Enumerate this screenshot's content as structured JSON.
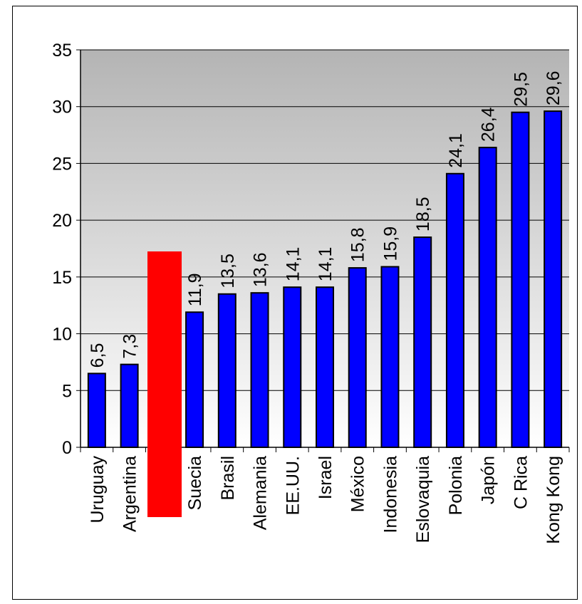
{
  "chart_data": {
    "type": "bar",
    "title": "",
    "xlabel": "",
    "ylabel": "",
    "categories": [
      "Uruguay",
      "Argentina",
      "",
      "Suecia",
      "Brasil",
      "Alemania",
      "EE.UU.",
      "Israel",
      "México",
      "Indonesia",
      "Eslovaquia",
      "Polonia",
      "Japón",
      "C Rica",
      "Kong Kong"
    ],
    "values": [
      6.5,
      7.3,
      null,
      11.9,
      13.5,
      13.6,
      14.1,
      14.1,
      15.8,
      15.9,
      18.5,
      24.1,
      26.4,
      29.5,
      29.6
    ],
    "data_labels": [
      "6,5",
      "7,3",
      "",
      "11,9",
      "13,5",
      "13,6",
      "14,1",
      "14,1",
      "15,8",
      "15,9",
      "18,5",
      "24,1",
      "26,4",
      "29,5",
      "29,6"
    ],
    "yticks": [
      0,
      5,
      10,
      15,
      20,
      25,
      30,
      35
    ],
    "ytick_labels": [
      "0",
      "5",
      "10",
      "15",
      "20",
      "25",
      "30",
      "35"
    ],
    "ylim": [
      0,
      35
    ],
    "grid": true,
    "legend": "none",
    "colors": {
      "bar": "#0000ff",
      "bar_outline": "#000000",
      "redaction": "#ff0000",
      "plot_gradient_top": "#b4b4b4",
      "plot_gradient_bottom": "#ffffff"
    }
  }
}
